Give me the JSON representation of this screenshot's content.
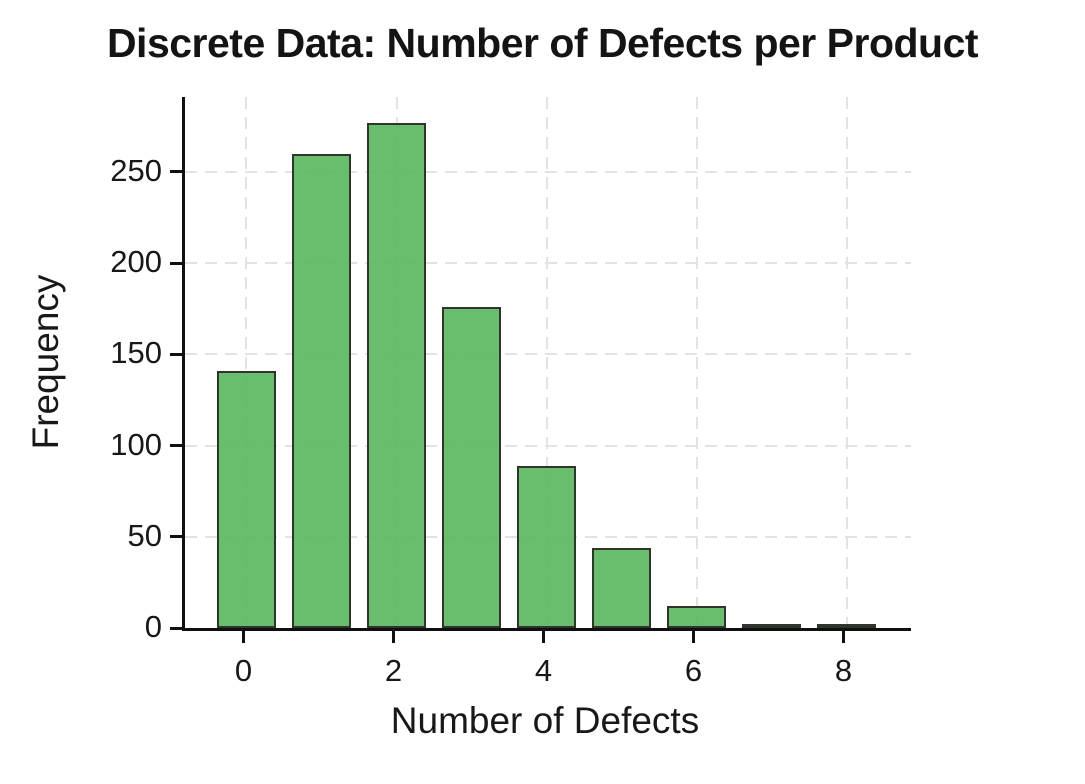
{
  "chart_data": {
    "type": "bar",
    "title": "Discrete Data: Number of Defects per Product",
    "xlabel": "Number of Defects",
    "ylabel": "Frequency",
    "categories": [
      0,
      1,
      2,
      3,
      4,
      5,
      6,
      7,
      8
    ],
    "values": [
      141,
      260,
      277,
      176,
      89,
      44,
      12,
      2,
      2
    ],
    "bar_width": 0.8,
    "xticks": [
      0,
      2,
      4,
      6,
      8
    ],
    "yticks": [
      0,
      50,
      100,
      150,
      200,
      250
    ],
    "xlim": [
      -0.82,
      8.86
    ],
    "ylim": [
      0,
      291
    ],
    "grid": "dashed both axes at tick positions",
    "legend_position": "none",
    "colors": {
      "bar_fill": "rgba(88,183,92,0.9)",
      "bar_edge": "#30352c",
      "grid": "#e3e3e3",
      "spine": "#101010",
      "text": "#181818"
    }
  }
}
